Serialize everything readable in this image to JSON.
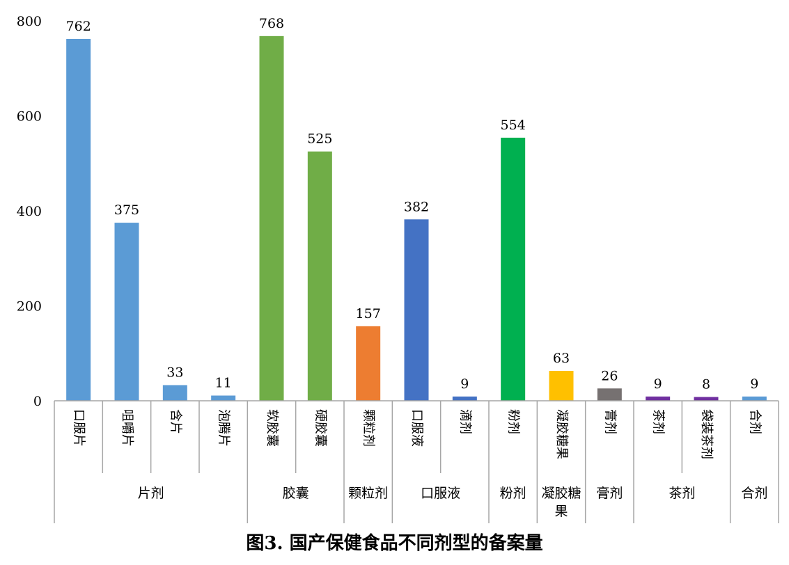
{
  "chart_data": {
    "type": "bar",
    "title": "图3. 国产保健食品不同剂型的备案量",
    "ylim": [
      0,
      800
    ],
    "yticks": [
      0,
      200,
      400,
      600,
      800
    ],
    "grid": false,
    "categories": [
      "口服片",
      "咀嚼片",
      "含片",
      "泡腾片",
      "软胶囊",
      "硬胶囊",
      "颗粒剂",
      "口服液",
      "滴剂",
      "粉剂",
      "凝胶糖果",
      "膏剂",
      "茶剂",
      "袋装茶剂",
      "合剂"
    ],
    "values": [
      762,
      375,
      33,
      11,
      768,
      525,
      157,
      382,
      9,
      554,
      63,
      26,
      9,
      8,
      9
    ],
    "groups": [
      {
        "label": "片剂",
        "count": 4,
        "color": "#5B9BD5"
      },
      {
        "label": "胶囊",
        "count": 2,
        "color": "#70AD47"
      },
      {
        "label": "颗粒剂",
        "count": 1,
        "color": "#ED7D31"
      },
      {
        "label": "口服液",
        "count": 2,
        "color": "#4472C4"
      },
      {
        "label": "粉剂",
        "count": 1,
        "color": "#00B050"
      },
      {
        "label": "凝胶糖果",
        "count": 1,
        "color": "#FFC000"
      },
      {
        "label": "膏剂",
        "count": 1,
        "color": "#767171"
      },
      {
        "label": "茶剂",
        "count": 2,
        "color": "#7030A0"
      },
      {
        "label": "合剂",
        "count": 1,
        "color": "#5B9BD5"
      }
    ],
    "legend": "none"
  }
}
